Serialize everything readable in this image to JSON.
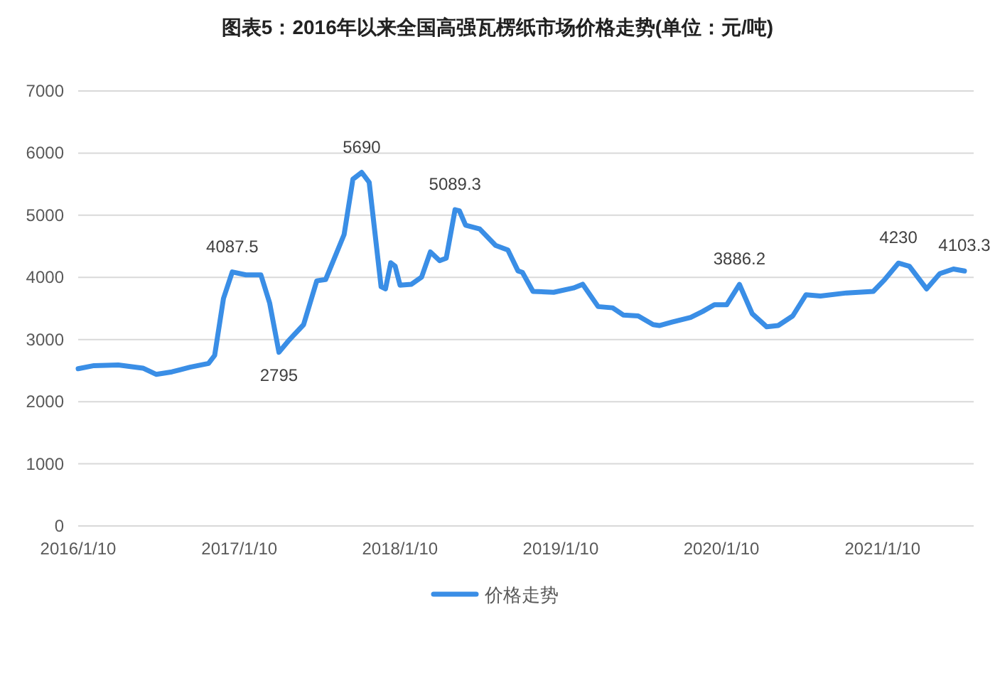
{
  "chart_data": {
    "type": "line",
    "title": "图表5：2016年以来全国高强瓦楞纸市场价格走势(单位：元/吨)",
    "xlim": [
      "2016-01-10",
      "2021-08-05"
    ],
    "ylim": [
      0,
      7000
    ],
    "yticks": [
      0,
      1000,
      2000,
      3000,
      4000,
      5000,
      6000,
      7000
    ],
    "xticks": [
      {
        "value": "2016-01-10",
        "label": "2016/1/10"
      },
      {
        "value": "2017-01-10",
        "label": "2017/1/10"
      },
      {
        "value": "2018-01-10",
        "label": "2018/1/10"
      },
      {
        "value": "2019-01-10",
        "label": "2019/1/10"
      },
      {
        "value": "2020-01-10",
        "label": "2020/1/10"
      },
      {
        "value": "2021-01-10",
        "label": "2021/1/10"
      }
    ],
    "grid": "y",
    "legend": "bottom",
    "line_style": "solid",
    "marker": "none",
    "series": [
      {
        "name": "价格走势",
        "color": "#3a8ee6",
        "x": [
          "2016-01-10",
          "2016-02-15",
          "2016-04-10",
          "2016-06-05",
          "2016-07-05",
          "2016-08-10",
          "2016-09-20",
          "2016-11-01",
          "2016-11-15",
          "2016-12-05",
          "2016-12-25",
          "2017-01-25",
          "2017-02-28",
          "2017-03-20",
          "2017-04-10",
          "2017-05-01",
          "2017-06-05",
          "2017-07-05",
          "2017-07-25",
          "2017-09-05",
          "2017-09-25",
          "2017-10-15",
          "2017-11-01",
          "2017-11-28",
          "2017-12-08",
          "2017-12-20",
          "2017-12-30",
          "2018-01-10",
          "2018-02-05",
          "2018-02-28",
          "2018-03-20",
          "2018-04-10",
          "2018-04-25",
          "2018-05-15",
          "2018-05-25",
          "2018-06-08",
          "2018-07-10",
          "2018-08-15",
          "2018-09-12",
          "2018-10-05",
          "2018-10-15",
          "2018-11-08",
          "2018-12-25",
          "2019-02-08",
          "2019-03-01",
          "2019-04-05",
          "2019-05-08",
          "2019-06-01",
          "2019-07-05",
          "2019-08-08",
          "2019-08-22",
          "2019-09-20",
          "2019-11-01",
          "2019-11-28",
          "2019-12-25",
          "2020-01-22",
          "2020-02-20",
          "2020-03-20",
          "2020-04-22",
          "2020-05-18",
          "2020-06-20",
          "2020-07-20",
          "2020-08-22",
          "2020-10-20",
          "2020-12-20",
          "2021-01-15",
          "2021-02-15",
          "2021-03-12",
          "2021-04-20",
          "2021-05-20",
          "2021-06-20",
          "2021-07-15"
        ],
        "values": [
          2530,
          2580,
          2590,
          2540,
          2440,
          2480,
          2555,
          2615,
          2745,
          3660,
          4087.5,
          4040,
          4040,
          3585,
          2795,
          2975,
          3240,
          3945,
          3965,
          4690,
          5580,
          5690,
          5530,
          3850,
          3815,
          4235,
          4180,
          3875,
          3890,
          4005,
          4410,
          4270,
          4310,
          5089.3,
          5070,
          4840,
          4780,
          4515,
          4440,
          4105,
          4080,
          3775,
          3760,
          3830,
          3890,
          3530,
          3510,
          3395,
          3380,
          3240,
          3225,
          3280,
          3355,
          3450,
          3560,
          3560,
          3886.2,
          3415,
          3205,
          3225,
          3380,
          3720,
          3700,
          3750,
          3775,
          3965,
          4230,
          4180,
          3815,
          4060,
          4135,
          4103.3
        ]
      }
    ],
    "annotations": [
      {
        "text": "4087.5",
        "x": "2016-12-25",
        "y": 4087.5
      },
      {
        "text": "2795",
        "x": "2017-04-10",
        "y": 2795
      },
      {
        "text": "5690",
        "x": "2017-10-15",
        "y": 5690
      },
      {
        "text": "5089.3",
        "x": "2018-05-15",
        "y": 5089.3
      },
      {
        "text": "3886.2",
        "x": "2020-02-20",
        "y": 3886.2
      },
      {
        "text": "4230",
        "x": "2021-02-15",
        "y": 4230
      },
      {
        "text": "4103.3",
        "x": "2021-07-15",
        "y": 4103.3
      }
    ]
  }
}
